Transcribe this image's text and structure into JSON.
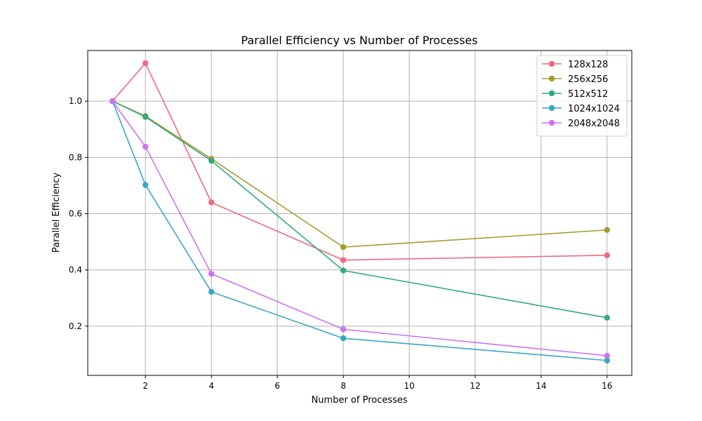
{
  "chart_data": {
    "type": "line",
    "title": "Parallel Efficiency vs Number of Processes",
    "xlabel": "Number of Processes",
    "ylabel": "Parallel Efficiency",
    "x": [
      1,
      2,
      4,
      8,
      16
    ],
    "xlim": [
      0.25,
      16.75
    ],
    "ylim": [
      0.025,
      1.18
    ],
    "xticks": [
      2,
      4,
      6,
      8,
      10,
      12,
      14,
      16
    ],
    "yticks": [
      0.2,
      0.4,
      0.6,
      0.8,
      1.0
    ],
    "xtick_labels": [
      "2",
      "4",
      "6",
      "8",
      "10",
      "12",
      "14",
      "16"
    ],
    "ytick_labels": [
      "0.2",
      "0.4",
      "0.6",
      "0.8",
      "1.0"
    ],
    "grid": true,
    "legend_position": "top-right",
    "series": [
      {
        "name": "128x128",
        "color": "#f0697f",
        "values": [
          1.0,
          1.135,
          0.64,
          0.435,
          0.452
        ]
      },
      {
        "name": "256x256",
        "color": "#a99a32",
        "values": [
          1.0,
          0.947,
          0.795,
          0.481,
          0.542
        ]
      },
      {
        "name": "512x512",
        "color": "#33ab7a",
        "values": [
          1.0,
          0.944,
          0.788,
          0.398,
          0.23
        ]
      },
      {
        "name": "1024x1024",
        "color": "#3aa6c2",
        "values": [
          1.0,
          0.702,
          0.322,
          0.157,
          0.078
        ]
      },
      {
        "name": "2048x2048",
        "color": "#cc73f0",
        "values": [
          1.0,
          0.838,
          0.386,
          0.189,
          0.095
        ]
      }
    ]
  }
}
